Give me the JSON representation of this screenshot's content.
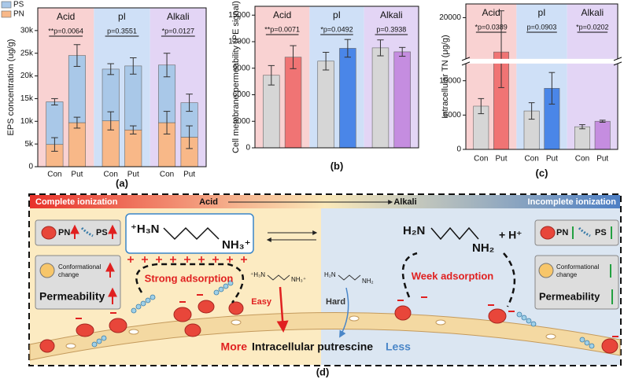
{
  "chart_data": [
    {
      "type": "bar",
      "stacked": true,
      "ylabel": "EPS concentration (ug/g)",
      "panel_label": "(a)",
      "groups": [
        "Acid",
        "pI",
        "Alkali"
      ],
      "group_colors": [
        "#f9d2d2",
        "#cfe0f7",
        "#e3d5f5"
      ],
      "annotations": [
        "**p=0.0064",
        "p=0.3551",
        "*p=0.0127"
      ],
      "categories": [
        "Con",
        "Put",
        "Con",
        "Put",
        "Con",
        "Put"
      ],
      "series": [
        {
          "name": "PN",
          "color": "#f8b888",
          "values": [
            4900,
            9700,
            10100,
            8100,
            9700,
            6500
          ],
          "errors": [
            1500,
            1200,
            2000,
            900,
            2500,
            2500
          ]
        },
        {
          "name": "PS",
          "color": "#a9c8e8",
          "values": [
            9400,
            14800,
            11400,
            14100,
            12700,
            7600
          ],
          "errors": [
            700,
            2400,
            1200,
            1800,
            2600,
            1900
          ]
        }
      ],
      "legend": "upper left",
      "ylim": [
        0,
        35000
      ],
      "yticks": [
        0,
        {
          "value": 5000,
          "label": "5k"
        },
        {
          "value": 10000,
          "label": "10k"
        },
        {
          "value": 15000,
          "label": "15k"
        },
        {
          "value": 20000,
          "label": "20k"
        },
        {
          "value": 25000,
          "label": "25k"
        },
        {
          "value": 30000,
          "label": "30k"
        }
      ]
    },
    {
      "type": "bar",
      "ylabel": "Cell membrane permeability (PE signal)",
      "panel_label": "(b)",
      "groups": [
        "Acid",
        "pI",
        "Alkali"
      ],
      "group_colors": [
        "#f9d2d2",
        "#cfe0f7",
        "#e3d5f5"
      ],
      "annotations": [
        "**p=0.0071",
        "*p=0.0492",
        "p=0.3938"
      ],
      "values": [
        8200,
        10250,
        9800,
        11250,
        11300,
        10850
      ],
      "errors": [
        1100,
        1300,
        1000,
        1000,
        900,
        500
      ],
      "colors": [
        "#d6d6d6",
        "#f07474",
        "#d6d6d6",
        "#4a86e8",
        "#d6d6d6",
        "#c58de0"
      ],
      "ylim": [
        0,
        16000
      ],
      "yticks": [
        0,
        3000,
        6000,
        9000,
        12000,
        15000
      ]
    },
    {
      "type": "bar",
      "ylabel": "Intracellular TN (μg/g)",
      "panel_label": "(c)",
      "groups": [
        "Acid",
        "pI",
        "Alkali"
      ],
      "group_colors": [
        "#f9d2d2",
        "#cfe0f7",
        "#e3d5f5"
      ],
      "annotations": [
        "*p=0.0389",
        "p=0.0903",
        "*p=0.0202"
      ],
      "categories": [
        "Con",
        "Put",
        "Con",
        "Put",
        "Con",
        "Put"
      ],
      "values": [
        6300,
        15000,
        5600,
        8900,
        3300,
        4100
      ],
      "errors": [
        1100,
        6000,
        1200,
        2300,
        300,
        150
      ],
      "colors": [
        "#d6d6d6",
        "#f07474",
        "#d6d6d6",
        "#4a86e8",
        "#d6d6d6",
        "#c58de0"
      ],
      "ylim": [
        0,
        22000
      ],
      "ybreak": [
        12500,
        14000
      ],
      "yticks": [
        0,
        5000,
        10000,
        20000
      ]
    }
  ],
  "diagram": {
    "label": "(d)",
    "left_end": "Complete ionization",
    "acid": "Acid",
    "alkali": "Alkali",
    "right_end": "Incomplete ionization",
    "pn": "PN",
    "ps": "PS",
    "conformational": [
      "Conformational",
      "change"
    ],
    "permeability": "Permeability",
    "acid_mol_left": "⁺H₃N",
    "acid_mol_right": "NH₃⁺",
    "base_mol_left": "H₂N",
    "base_mol_right": "NH₂",
    "proton": "+ H⁺",
    "strong": "Strong adsorption",
    "weak": "Week adsorption",
    "easy": "Easy",
    "hard": "Hard",
    "more": "More",
    "center": "Intracellular putrescine",
    "less": "Less"
  }
}
